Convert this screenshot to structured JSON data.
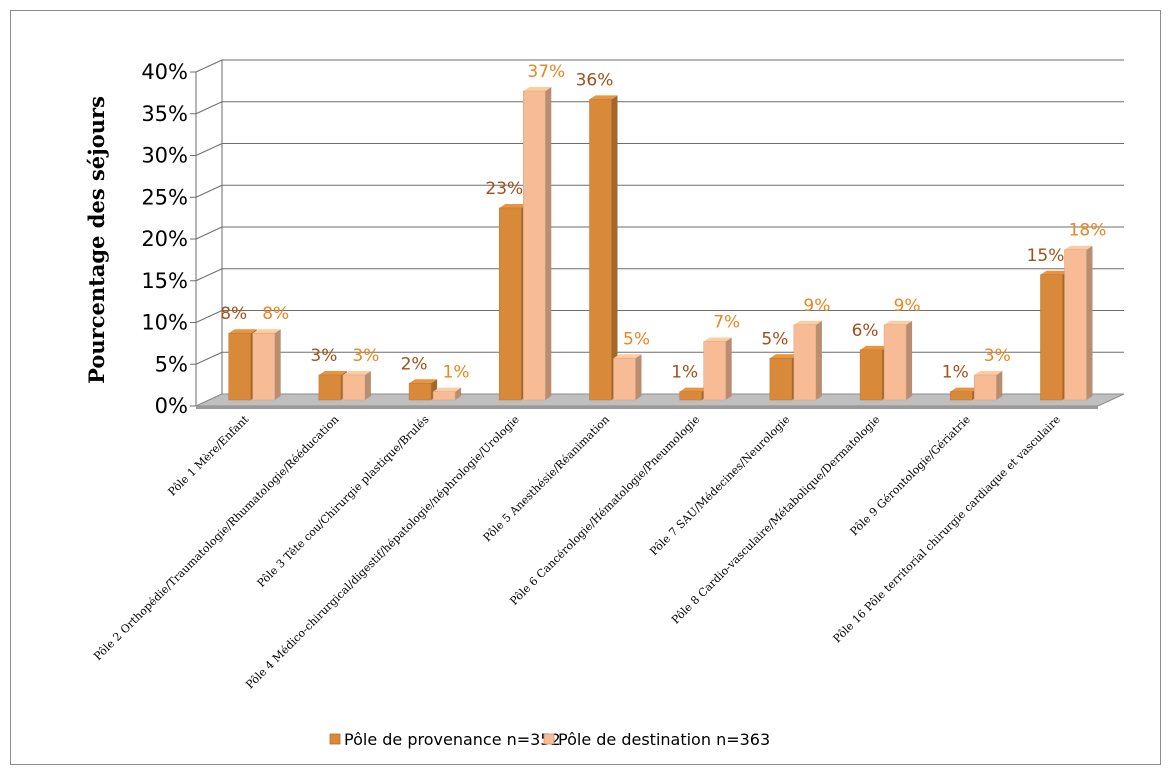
{
  "chart_data": {
    "type": "bar",
    "title": "",
    "xlabel": "",
    "ylabel": "Pourcentage des séjours",
    "ylim": [
      0,
      40
    ],
    "yticks": [
      "0%",
      "5%",
      "10%",
      "15%",
      "20%",
      "25%",
      "30%",
      "35%",
      "40%"
    ],
    "grid": true,
    "legend_position": "bottom",
    "categories": [
      "Pôle 1 Mère/Enfant",
      "Pôle 2 Orthopédie/Traumatologie/Rhumatologie/Rééducation",
      "Pôle 3 Tête cou/Chirurgie plastique/Brulés",
      "Pôle 4 Médico-chirurgical/digestif/hépatologie/néphrologie/Urologie",
      "Pôle 5 Anesthésie/Réanimation",
      "Pôle 6 Cancérologie/Hématologie/Pneumologie",
      "Pôle 7 SAU/Médecines/Neurologie",
      "Pôle 8 Cardio-vasculaire/Métabolique/Dermatologie",
      "Pôle 9 Gérontologie/Gériatrie",
      "Pôle 16 Pôle territorial chirurgie cardiaque et vasculaire"
    ],
    "series": [
      {
        "name": "Pôle de provenance n=352",
        "color": "#d9893a",
        "label_color": "#a0501c",
        "values": [
          8,
          3,
          2,
          23,
          36,
          1,
          5,
          6,
          1,
          15
        ],
        "labels": [
          "8%",
          "3%",
          "2%",
          "23%",
          "36%",
          "1%",
          "5%",
          "6%",
          "1%",
          "15%"
        ]
      },
      {
        "name": "Pôle de destination n=363",
        "color": "#f7bc95",
        "label_color": "#e8861f",
        "values": [
          8,
          3,
          1,
          37,
          5,
          7,
          9,
          9,
          3,
          18
        ],
        "labels": [
          "8%",
          "3%",
          "1%",
          "37%",
          "5%",
          "7%",
          "9%",
          "9%",
          "3%",
          "18%"
        ]
      }
    ]
  }
}
